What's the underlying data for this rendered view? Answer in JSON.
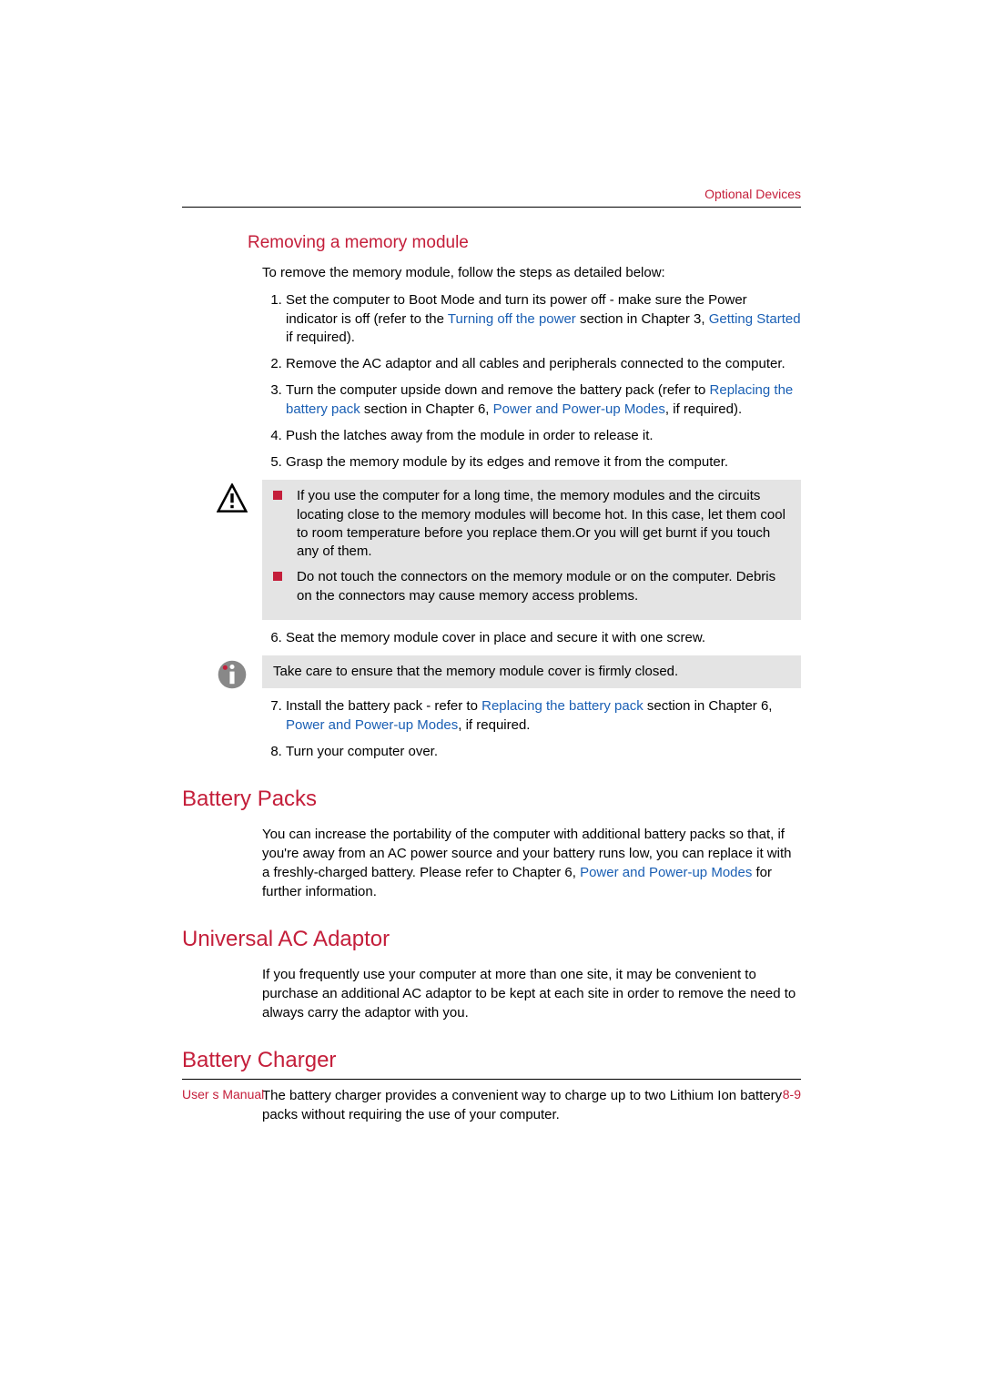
{
  "colors": {
    "accent": "#c41e3a",
    "link": "#1a5fb4",
    "text": "#000000",
    "noteBg": "#e4e4e4",
    "bg": "#ffffff",
    "rule": "#000000"
  },
  "typography": {
    "body_pt": 15,
    "h2_pt": 24,
    "h3_pt": 19,
    "footer_pt": 14,
    "family": "Arial"
  },
  "header": {
    "section": "Optional Devices"
  },
  "section1": {
    "title": "Removing a memory module",
    "intro": "To remove the memory module, follow the steps as detailed below:",
    "steps_a": [
      {
        "parts": [
          {
            "t": "Set the computer to Boot Mode and turn its power off - make sure the Power indicator is off (refer to the "
          },
          {
            "t": "Turning off the power",
            "link": true
          },
          {
            "t": " section in Chapter 3, "
          },
          {
            "t": "Getting Started",
            "link": true
          },
          {
            "t": " if required)."
          }
        ]
      },
      {
        "parts": [
          {
            "t": "Remove the AC adaptor and all cables and peripherals connected to the computer."
          }
        ]
      },
      {
        "parts": [
          {
            "t": "Turn the computer upside down and remove the battery pack (refer to "
          },
          {
            "t": "Replacing the battery pack",
            "link": true
          },
          {
            "t": " section in Chapter 6, "
          },
          {
            "t": "Power and Power-up Modes",
            "link": true
          },
          {
            "t": ", if required)."
          }
        ]
      },
      {
        "parts": [
          {
            "t": "Push the latches away from the module in order to release it."
          }
        ]
      },
      {
        "parts": [
          {
            "t": "Grasp the memory module by its edges and remove it from the computer."
          }
        ]
      }
    ],
    "warn": [
      "If you use the computer for a long time, the memory modules and the circuits locating close to the memory modules will become hot. In this case, let them cool to room temperature before you replace them.Or you will get burnt if you touch any of them.",
      "Do not touch the connectors on the memory module or on the computer. Debris on the connectors may cause memory access problems."
    ],
    "steps_b": [
      {
        "parts": [
          {
            "t": "Seat the memory module cover in place and secure it with one screw."
          }
        ]
      }
    ],
    "info": "Take care to ensure that the memory module cover is firmly closed.",
    "steps_c": [
      {
        "parts": [
          {
            "t": "Install the battery pack - refer to "
          },
          {
            "t": "Replacing the battery pack",
            "link": true
          },
          {
            "t": " section in Chapter 6, "
          },
          {
            "t": "Power and Power-up Modes",
            "link": true
          },
          {
            "t": ", if required."
          }
        ]
      },
      {
        "parts": [
          {
            "t": "Turn your computer over."
          }
        ]
      }
    ]
  },
  "section2": {
    "title": "Battery Packs",
    "parts": [
      {
        "t": "You can increase the portability of the computer with additional battery packs so that, if you're away from an AC power source and your battery runs low, you can replace it with a freshly-charged battery. Please refer to Chapter 6, "
      },
      {
        "t": "Power and Power-up Modes",
        "link": true
      },
      {
        "t": " for further information."
      }
    ]
  },
  "section3": {
    "title": "Universal AC Adaptor",
    "body": "If you frequently use your computer at more than one site, it may be convenient to purchase an additional AC adaptor to be kept at each site in order to remove the need to always carry the adaptor with you."
  },
  "section4": {
    "title": "Battery Charger",
    "body": "The battery charger provides a convenient way to charge up to two Lithium Ion battery packs without requiring the use of your computer."
  },
  "footer": {
    "left": "User s Manual",
    "right": "8-9"
  }
}
